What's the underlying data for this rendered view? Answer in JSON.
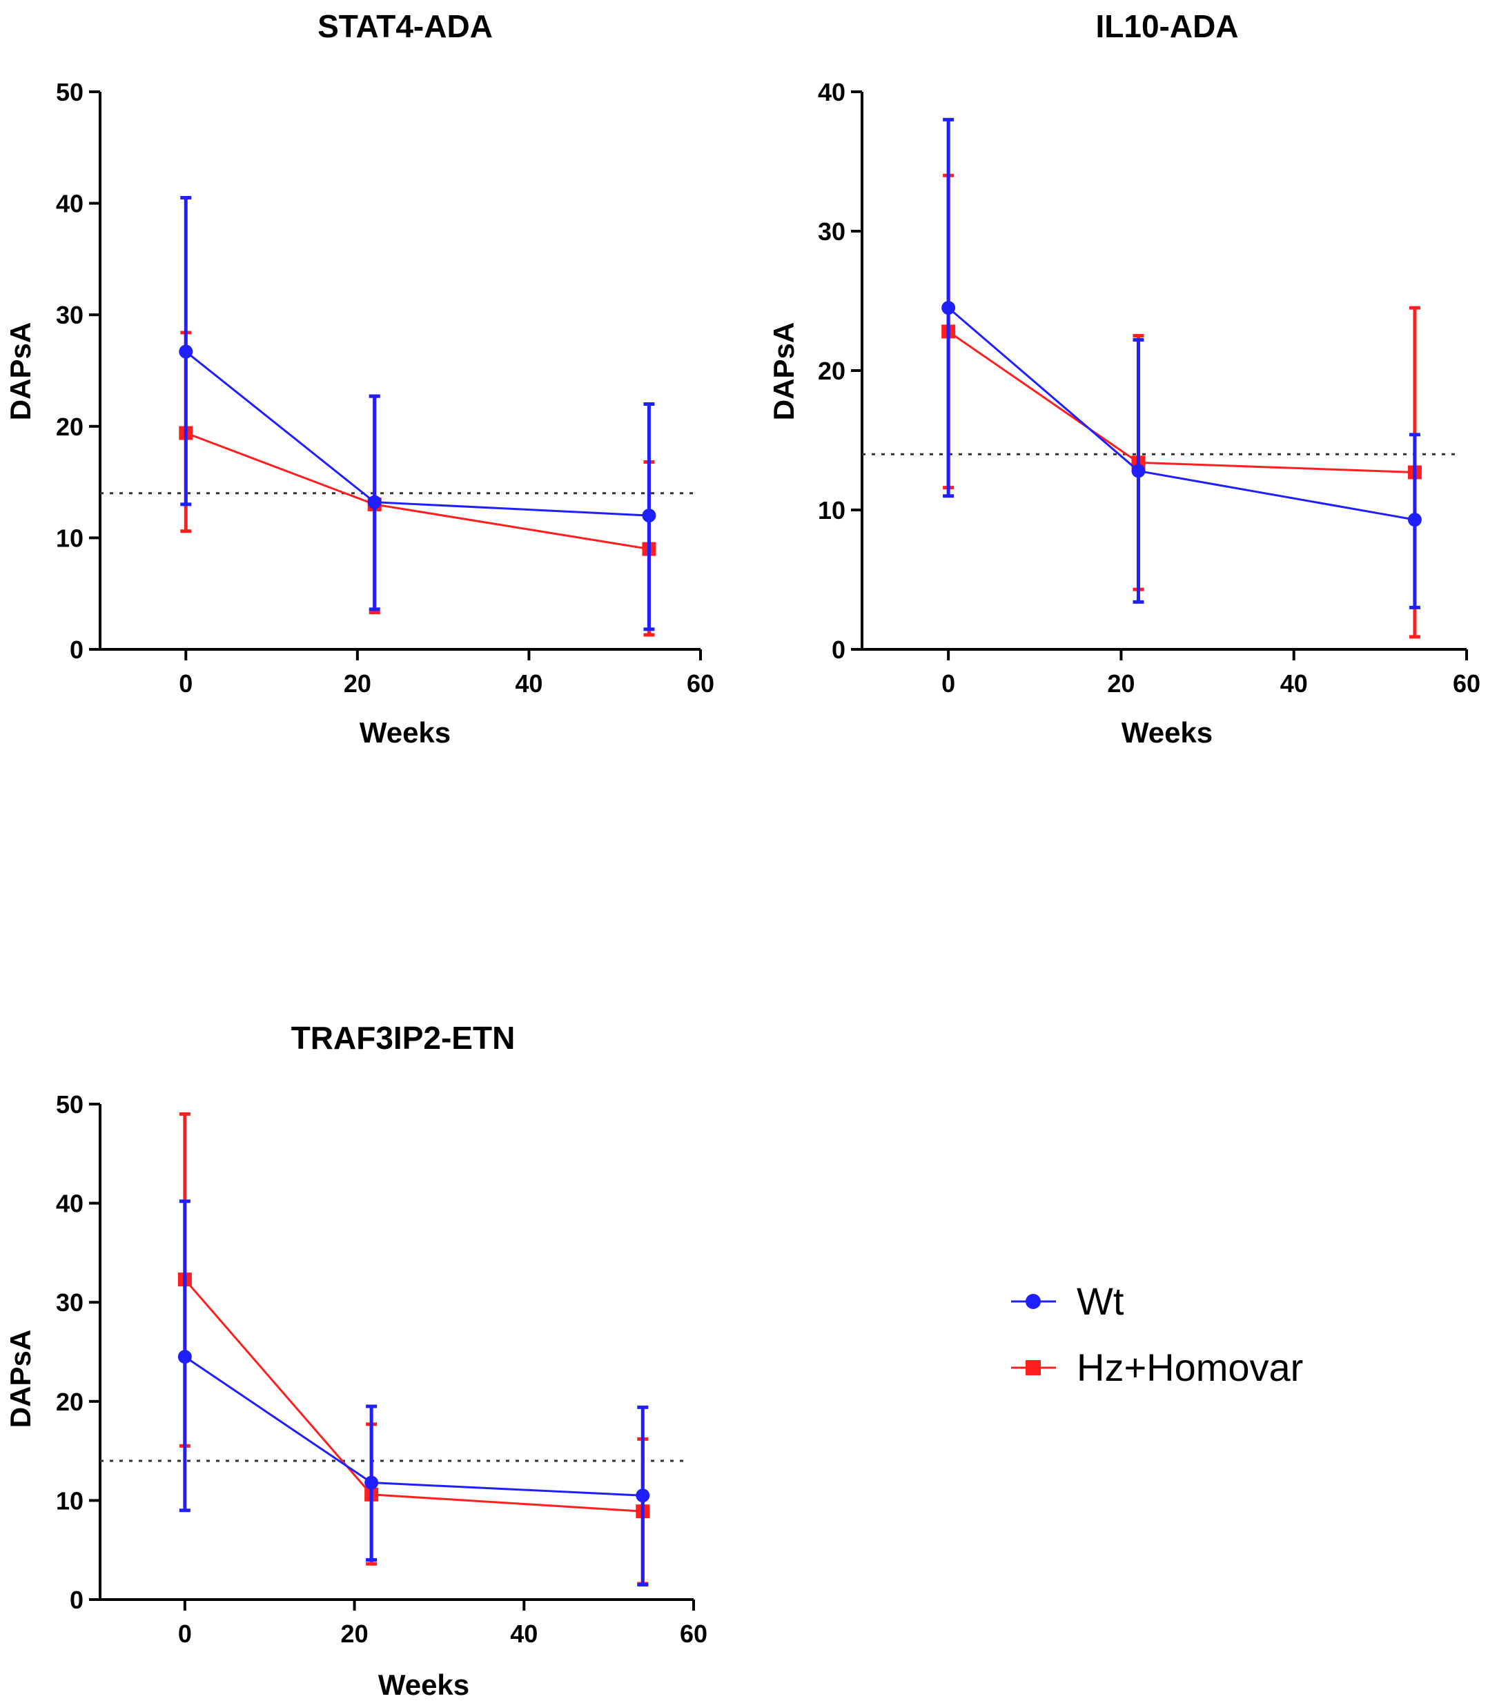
{
  "chart_data": [
    {
      "type": "line",
      "title": "STAT4-ADA",
      "xlabel": "Weeks",
      "ylabel": "DAPsA",
      "xlim": [
        -10,
        60
      ],
      "ylim": [
        0,
        50
      ],
      "xticks": [
        0,
        20,
        40,
        60
      ],
      "yticks": [
        0,
        10,
        20,
        30,
        40,
        50
      ],
      "threshold": 14,
      "series": [
        {
          "name": "Wt",
          "x": [
            0,
            22,
            54
          ],
          "y": [
            26.7,
            13.2,
            12.0
          ],
          "lower": [
            13.0,
            3.6,
            1.8
          ],
          "upper": [
            40.5,
            22.7,
            22.0
          ]
        },
        {
          "name": "Hz+Homovar",
          "x": [
            0,
            22,
            54
          ],
          "y": [
            19.4,
            13.0,
            9.0
          ],
          "lower": [
            10.6,
            3.3,
            1.3
          ],
          "upper": [
            28.4,
            22.7,
            16.8
          ]
        }
      ]
    },
    {
      "type": "line",
      "title": "IL10-ADA",
      "xlabel": "Weeks",
      "ylabel": "DAPsA",
      "xlim": [
        -10,
        60
      ],
      "ylim": [
        0,
        40
      ],
      "xticks": [
        0,
        20,
        40,
        60
      ],
      "yticks": [
        0,
        10,
        20,
        30,
        40
      ],
      "threshold": 14,
      "series": [
        {
          "name": "Wt",
          "x": [
            0,
            22,
            54
          ],
          "y": [
            24.5,
            12.8,
            9.3
          ],
          "lower": [
            11.0,
            3.4,
            3.0
          ],
          "upper": [
            38.0,
            22.2,
            15.4
          ]
        },
        {
          "name": "Hz+Homovar",
          "x": [
            0,
            22,
            54
          ],
          "y": [
            22.8,
            13.4,
            12.7
          ],
          "lower": [
            11.6,
            4.3,
            0.9
          ],
          "upper": [
            34.0,
            22.5,
            24.5
          ]
        }
      ]
    },
    {
      "type": "line",
      "title": "TRAF3IP2-ETN",
      "xlabel": "Weeks",
      "ylabel": "DAPsA",
      "xlim": [
        -10,
        60
      ],
      "ylim": [
        0,
        50
      ],
      "xticks": [
        0,
        20,
        40,
        60
      ],
      "yticks": [
        0,
        10,
        20,
        30,
        40,
        50
      ],
      "threshold": 14,
      "series": [
        {
          "name": "Wt",
          "x": [
            0,
            22,
            54
          ],
          "y": [
            24.5,
            11.8,
            10.5
          ],
          "lower": [
            9.0,
            4.0,
            1.5
          ],
          "upper": [
            40.2,
            19.5,
            19.4
          ]
        },
        {
          "name": "Hz+Homovar",
          "x": [
            0,
            22,
            54
          ],
          "y": [
            32.3,
            10.6,
            8.9
          ],
          "lower": [
            15.5,
            3.6,
            1.6
          ],
          "upper": [
            49.0,
            17.7,
            16.2
          ]
        }
      ]
    }
  ],
  "legend": {
    "items": [
      {
        "label": "Wt",
        "color": "#1f1fff",
        "marker": "circle"
      },
      {
        "label": "Hz+Homovar",
        "color": "#ff1f1f",
        "marker": "square"
      }
    ]
  }
}
